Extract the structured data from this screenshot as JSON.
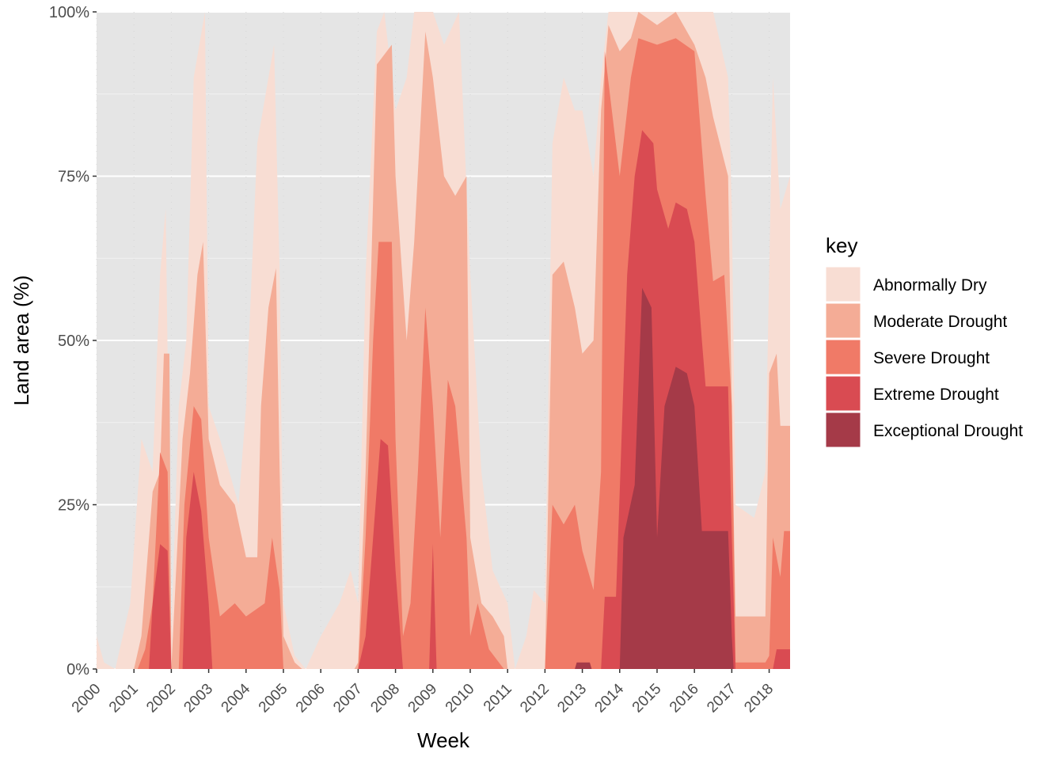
{
  "chart_data": {
    "type": "area",
    "title": "",
    "xlabel": "Week",
    "ylabel": "Land area (%)",
    "xlim": [
      2000,
      2018.56
    ],
    "ylim": [
      0,
      100
    ],
    "x_ticks": [
      "2000",
      "2001",
      "2002",
      "2003",
      "2004",
      "2005",
      "2006",
      "2007",
      "2008",
      "2009",
      "2010",
      "2011",
      "2012",
      "2013",
      "2014",
      "2015",
      "2016",
      "2017",
      "2018"
    ],
    "y_ticks": [
      {
        "value": 0,
        "label": "0%"
      },
      {
        "value": 25,
        "label": "25%"
      },
      {
        "value": 50,
        "label": "50%"
      },
      {
        "value": 75,
        "label": "75%"
      },
      {
        "value": 100,
        "label": "100%"
      }
    ],
    "grid": true,
    "legend": {
      "title": "key",
      "placement": "right"
    },
    "series": [
      {
        "name": "Abnormally Dry",
        "color": "#F8DDD3",
        "points": [
          [
            2000,
            5
          ],
          [
            2000.2,
            1
          ],
          [
            2000.5,
            0
          ],
          [
            2000.9,
            10
          ],
          [
            2001.2,
            35
          ],
          [
            2001.5,
            30
          ],
          [
            2001.7,
            60
          ],
          [
            2001.85,
            70
          ],
          [
            2002,
            5
          ],
          [
            2002.2,
            40
          ],
          [
            2002.4,
            50
          ],
          [
            2002.6,
            90
          ],
          [
            2002.75,
            95
          ],
          [
            2002.9,
            100
          ],
          [
            2003,
            40
          ],
          [
            2003.3,
            35
          ],
          [
            2003.8,
            25
          ],
          [
            2004,
            40
          ],
          [
            2004.3,
            80
          ],
          [
            2004.6,
            90
          ],
          [
            2004.75,
            95
          ],
          [
            2004.9,
            60
          ],
          [
            2005,
            10
          ],
          [
            2005.3,
            2
          ],
          [
            2005.6,
            0
          ],
          [
            2006,
            5
          ],
          [
            2006.5,
            10
          ],
          [
            2006.8,
            15
          ],
          [
            2007,
            10
          ],
          [
            2007.2,
            60
          ],
          [
            2007.5,
            97
          ],
          [
            2007.7,
            100
          ],
          [
            2008,
            85
          ],
          [
            2008.3,
            90
          ],
          [
            2008.5,
            100
          ],
          [
            2009,
            100
          ],
          [
            2009.3,
            95
          ],
          [
            2009.7,
            100
          ],
          [
            2010,
            60
          ],
          [
            2010.3,
            30
          ],
          [
            2010.6,
            15
          ],
          [
            2011,
            10
          ],
          [
            2011.2,
            0
          ],
          [
            2011.5,
            5
          ],
          [
            2011.7,
            12
          ],
          [
            2012,
            10
          ],
          [
            2012.2,
            80
          ],
          [
            2012.5,
            90
          ],
          [
            2012.8,
            85
          ],
          [
            2013,
            85
          ],
          [
            2013.3,
            75
          ],
          [
            2013.5,
            90
          ],
          [
            2013.7,
            100
          ],
          [
            2016.5,
            100
          ],
          [
            2016.9,
            90
          ],
          [
            2017,
            70
          ],
          [
            2017.1,
            25
          ],
          [
            2017.6,
            23
          ],
          [
            2017.9,
            30
          ],
          [
            2018.1,
            90
          ],
          [
            2018.3,
            70
          ],
          [
            2018.56,
            75
          ]
        ]
      },
      {
        "name": "Moderate Drought",
        "color": "#F4AC96",
        "points": [
          [
            2000,
            0
          ],
          [
            2001,
            0
          ],
          [
            2001.2,
            5
          ],
          [
            2001.5,
            27
          ],
          [
            2001.7,
            30
          ],
          [
            2001.8,
            48
          ],
          [
            2001.95,
            48
          ],
          [
            2002,
            0
          ],
          [
            2002.3,
            35
          ],
          [
            2002.5,
            45
          ],
          [
            2002.7,
            60
          ],
          [
            2002.85,
            65
          ],
          [
            2003,
            35
          ],
          [
            2003.3,
            28
          ],
          [
            2003.7,
            25
          ],
          [
            2004,
            17
          ],
          [
            2004.3,
            17
          ],
          [
            2004.4,
            40
          ],
          [
            2004.6,
            55
          ],
          [
            2004.8,
            61
          ],
          [
            2004.9,
            30
          ],
          [
            2005,
            5
          ],
          [
            2005.3,
            1
          ],
          [
            2005.5,
            0
          ],
          [
            2006.9,
            0
          ],
          [
            2007,
            1
          ],
          [
            2007.2,
            30
          ],
          [
            2007.5,
            92
          ],
          [
            2007.9,
            95
          ],
          [
            2008,
            75
          ],
          [
            2008.3,
            50
          ],
          [
            2008.5,
            65
          ],
          [
            2008.8,
            97
          ],
          [
            2009,
            90
          ],
          [
            2009.3,
            75
          ],
          [
            2009.6,
            72
          ],
          [
            2009.9,
            75
          ],
          [
            2010,
            20
          ],
          [
            2010.3,
            10
          ],
          [
            2010.6,
            8
          ],
          [
            2010.9,
            5
          ],
          [
            2011,
            0
          ],
          [
            2012,
            0
          ],
          [
            2012.2,
            60
          ],
          [
            2012.5,
            62
          ],
          [
            2012.8,
            55
          ],
          [
            2013,
            48
          ],
          [
            2013.3,
            50
          ],
          [
            2013.5,
            85
          ],
          [
            2013.7,
            98
          ],
          [
            2014,
            94
          ],
          [
            2014.3,
            96
          ],
          [
            2014.5,
            100
          ],
          [
            2015,
            98
          ],
          [
            2015.5,
            100
          ],
          [
            2016,
            95
          ],
          [
            2016.3,
            90
          ],
          [
            2016.5,
            84
          ],
          [
            2016.9,
            75
          ],
          [
            2017,
            40
          ],
          [
            2017.1,
            8
          ],
          [
            2017.9,
            8
          ],
          [
            2018,
            45
          ],
          [
            2018.2,
            48
          ],
          [
            2018.3,
            37
          ],
          [
            2018.56,
            37
          ]
        ]
      },
      {
        "name": "Severe Drought",
        "color": "#F07A67",
        "points": [
          [
            2000,
            0
          ],
          [
            2001.1,
            0
          ],
          [
            2001.3,
            3
          ],
          [
            2001.5,
            10
          ],
          [
            2001.7,
            33
          ],
          [
            2001.9,
            30
          ],
          [
            2002,
            0
          ],
          [
            2002.2,
            0
          ],
          [
            2002.35,
            25
          ],
          [
            2002.6,
            40
          ],
          [
            2002.8,
            38
          ],
          [
            2003,
            20
          ],
          [
            2003.3,
            8
          ],
          [
            2003.7,
            10
          ],
          [
            2004,
            8
          ],
          [
            2004.5,
            10
          ],
          [
            2004.7,
            20
          ],
          [
            2004.9,
            12
          ],
          [
            2005,
            0
          ],
          [
            2007,
            0
          ],
          [
            2007.2,
            20
          ],
          [
            2007.4,
            50
          ],
          [
            2007.55,
            65
          ],
          [
            2007.9,
            65
          ],
          [
            2008,
            35
          ],
          [
            2008.2,
            5
          ],
          [
            2008.4,
            10
          ],
          [
            2008.6,
            30
          ],
          [
            2008.8,
            55
          ],
          [
            2009,
            40
          ],
          [
            2009.2,
            20
          ],
          [
            2009.4,
            44
          ],
          [
            2009.6,
            40
          ],
          [
            2009.9,
            20
          ],
          [
            2010,
            5
          ],
          [
            2010.2,
            10
          ],
          [
            2010.5,
            3
          ],
          [
            2010.9,
            0
          ],
          [
            2012,
            0
          ],
          [
            2012.2,
            25
          ],
          [
            2012.5,
            22
          ],
          [
            2012.8,
            25
          ],
          [
            2013,
            18
          ],
          [
            2013.3,
            12
          ],
          [
            2013.5,
            30
          ],
          [
            2013.6,
            94
          ],
          [
            2014,
            75
          ],
          [
            2014.3,
            90
          ],
          [
            2014.5,
            96
          ],
          [
            2015,
            95
          ],
          [
            2015.5,
            96
          ],
          [
            2016,
            94
          ],
          [
            2016.3,
            72
          ],
          [
            2016.5,
            59
          ],
          [
            2016.8,
            60
          ],
          [
            2017,
            40
          ],
          [
            2017.1,
            1
          ],
          [
            2017.9,
            1
          ],
          [
            2018,
            2
          ],
          [
            2018.1,
            20
          ],
          [
            2018.3,
            14
          ],
          [
            2018.4,
            21
          ],
          [
            2018.56,
            21
          ]
        ]
      },
      {
        "name": "Extreme Drought",
        "color": "#D94B52",
        "points": [
          [
            2000,
            0
          ],
          [
            2001.4,
            0
          ],
          [
            2001.5,
            10
          ],
          [
            2001.7,
            19
          ],
          [
            2001.9,
            18
          ],
          [
            2002,
            0
          ],
          [
            2002.3,
            0
          ],
          [
            2002.4,
            20
          ],
          [
            2002.6,
            30
          ],
          [
            2002.8,
            24
          ],
          [
            2003,
            10
          ],
          [
            2003.1,
            0
          ],
          [
            2007,
            0
          ],
          [
            2007.2,
            5
          ],
          [
            2007.4,
            20
          ],
          [
            2007.6,
            35
          ],
          [
            2007.8,
            34
          ],
          [
            2008,
            15
          ],
          [
            2008.2,
            0
          ],
          [
            2008.9,
            0
          ],
          [
            2009,
            19
          ],
          [
            2009.1,
            0
          ],
          [
            2013.5,
            0
          ],
          [
            2013.6,
            11
          ],
          [
            2013.9,
            11
          ],
          [
            2014,
            27
          ],
          [
            2014.2,
            60
          ],
          [
            2014.4,
            75
          ],
          [
            2014.6,
            82
          ],
          [
            2014.9,
            80
          ],
          [
            2015,
            73
          ],
          [
            2015.3,
            67
          ],
          [
            2015.5,
            71
          ],
          [
            2015.8,
            70
          ],
          [
            2016,
            65
          ],
          [
            2016.2,
            50
          ],
          [
            2016.3,
            43
          ],
          [
            2016.9,
            43
          ],
          [
            2017,
            20
          ],
          [
            2017.1,
            0
          ],
          [
            2018.1,
            0
          ],
          [
            2018.2,
            3
          ],
          [
            2018.56,
            3
          ]
        ]
      },
      {
        "name": "Exceptional Drought",
        "color": "#A53A48",
        "points": [
          [
            2000,
            0
          ],
          [
            2012.8,
            0
          ],
          [
            2012.85,
            1
          ],
          [
            2013.2,
            1
          ],
          [
            2013.25,
            0
          ],
          [
            2014,
            0
          ],
          [
            2014.1,
            20
          ],
          [
            2014.4,
            28
          ],
          [
            2014.6,
            58
          ],
          [
            2014.85,
            55
          ],
          [
            2015,
            20
          ],
          [
            2015.2,
            40
          ],
          [
            2015.5,
            46
          ],
          [
            2015.8,
            45
          ],
          [
            2016,
            40
          ],
          [
            2016.2,
            21
          ],
          [
            2016.9,
            21
          ],
          [
            2017,
            5
          ],
          [
            2017.05,
            0
          ],
          [
            2018.56,
            0
          ]
        ]
      }
    ]
  }
}
